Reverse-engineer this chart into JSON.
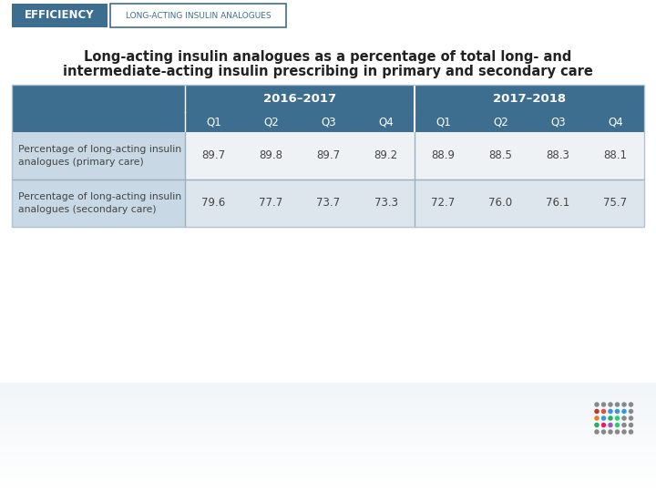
{
  "header_label": "EFFICIENCY",
  "header_sublabel": "LONG-ACTING INSULIN ANALOGUES",
  "title_line1": "Long-acting insulin analogues as a percentage of total long- and",
  "title_line2": "intermediate-acting insulin prescribing in primary and secondary care",
  "year_headers": [
    "2016–2017",
    "2017–2018"
  ],
  "quarter_headers": [
    "Q1",
    "Q2",
    "Q3",
    "Q4",
    "Q1",
    "Q2",
    "Q3",
    "Q4"
  ],
  "row_labels": [
    "Percentage of long-acting insulin\nanalogues (primary care)",
    "Percentage of long-acting insulin\nanalogues (secondary care)"
  ],
  "data": [
    [
      89.7,
      89.8,
      89.7,
      89.2,
      88.9,
      88.5,
      88.3,
      88.1
    ],
    [
      79.6,
      77.7,
      73.7,
      73.3,
      72.7,
      76.0,
      76.1,
      75.7
    ]
  ],
  "header_bg": "#3d6e8f",
  "header_text_color": "#ffffff",
  "row1_bg": "#eef2f5",
  "row2_bg": "#dde6ed",
  "label_col_bg_dark": "#c8d8e4",
  "efficiency_bg": "#3d6e8f",
  "efficiency_text": "#ffffff",
  "sublabel_border": "#3d6e8f",
  "sublabel_bg": "#ffffff",
  "sublabel_text": "#3d6e8f",
  "table_text_color": "#444444",
  "title_text_color": "#222222",
  "table_outer_border": "#b0c4d0",
  "separator_color": "#ffffff",
  "mid_separator_color": "#9ab0be"
}
